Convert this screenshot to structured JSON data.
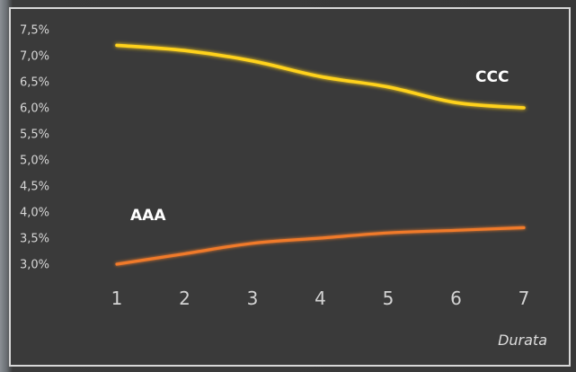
{
  "chart_data": {
    "type": "line",
    "title": "",
    "xlabel": "Durata",
    "ylabel": "",
    "x": [
      1,
      2,
      3,
      4,
      5,
      6,
      7
    ],
    "ylim": [
      2.8,
      7.5
    ],
    "yticks": [
      "7,5%",
      "7,0%",
      "6,5%",
      "6,0%",
      "5,5%",
      "5,0%",
      "4,5%",
      "4,0%",
      "3,5%",
      "3,0%"
    ],
    "ytick_values": [
      7.5,
      7.0,
      6.5,
      6.0,
      5.5,
      5.0,
      4.5,
      4.0,
      3.5,
      3.0
    ],
    "xticks": [
      "1",
      "2",
      "3",
      "4",
      "5",
      "6",
      "7"
    ],
    "grid": false,
    "series": [
      {
        "name": "CCC",
        "values": [
          7.2,
          7.1,
          6.9,
          6.6,
          6.4,
          6.1,
          6.0
        ],
        "color": "#ffd21a"
      },
      {
        "name": "AAA",
        "values": [
          3.0,
          3.2,
          3.4,
          3.5,
          3.6,
          3.65,
          3.7
        ],
        "color": "#f07a2b"
      }
    ]
  }
}
